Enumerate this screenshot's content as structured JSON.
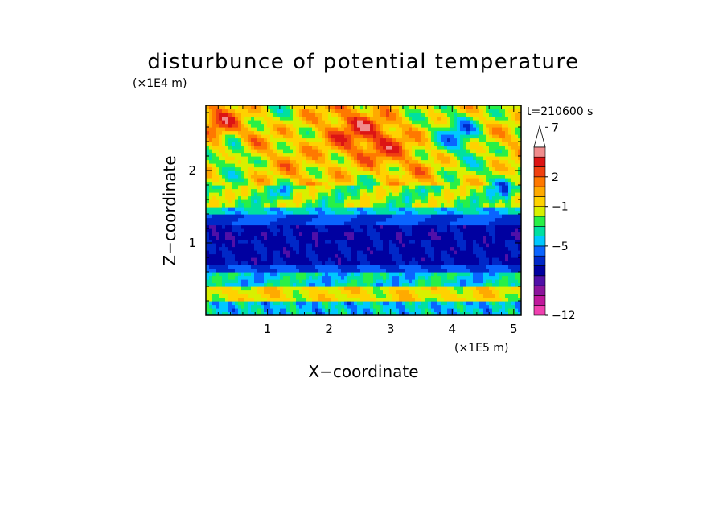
{
  "chart_data": {
    "type": "heatmap",
    "title": "disturbunce of potential temperature",
    "xlabel": "X−coordinate",
    "ylabel": "Z−coordinate",
    "x_unit": "(×1E5 m)",
    "y_unit": "(×1E4 m)",
    "time_label": "t=210600 s",
    "xlim": [
      0,
      5.12
    ],
    "ylim": [
      0,
      2.9
    ],
    "xticks": [
      {
        "value": 1,
        "label": "1"
      },
      {
        "value": 2,
        "label": "2"
      },
      {
        "value": 3,
        "label": "3"
      },
      {
        "value": 4,
        "label": "4"
      },
      {
        "value": 5,
        "label": "5"
      }
    ],
    "yticks": [
      {
        "value": 1,
        "label": "1"
      },
      {
        "value": 2,
        "label": "2"
      }
    ],
    "colorbar": {
      "levels_bottom_to_top": [
        {
          "color": "#f040b0"
        },
        {
          "color": "#c0189c"
        },
        {
          "color": "#8c149c"
        },
        {
          "color": "#5010a8"
        },
        {
          "color": "#0000a0"
        },
        {
          "color": "#0028c8"
        },
        {
          "color": "#0a64ff"
        },
        {
          "color": "#00c8ff"
        },
        {
          "color": "#00e0a0"
        },
        {
          "color": "#28f046"
        },
        {
          "color": "#d8f000"
        },
        {
          "color": "#ffd200"
        },
        {
          "color": "#ffaa00"
        },
        {
          "color": "#ff7800"
        },
        {
          "color": "#f04010"
        },
        {
          "color": "#dc1414"
        },
        {
          "color": "#f08c8c"
        },
        {
          "color": "#f8c8c8"
        }
      ],
      "labels": [
        {
          "value": -12,
          "label": "−12"
        },
        {
          "value": -5,
          "label": "−5"
        },
        {
          "value": -1,
          "label": "−1"
        },
        {
          "value": 2,
          "label": "2"
        },
        {
          "value": 7,
          "label": "7"
        }
      ]
    }
  }
}
